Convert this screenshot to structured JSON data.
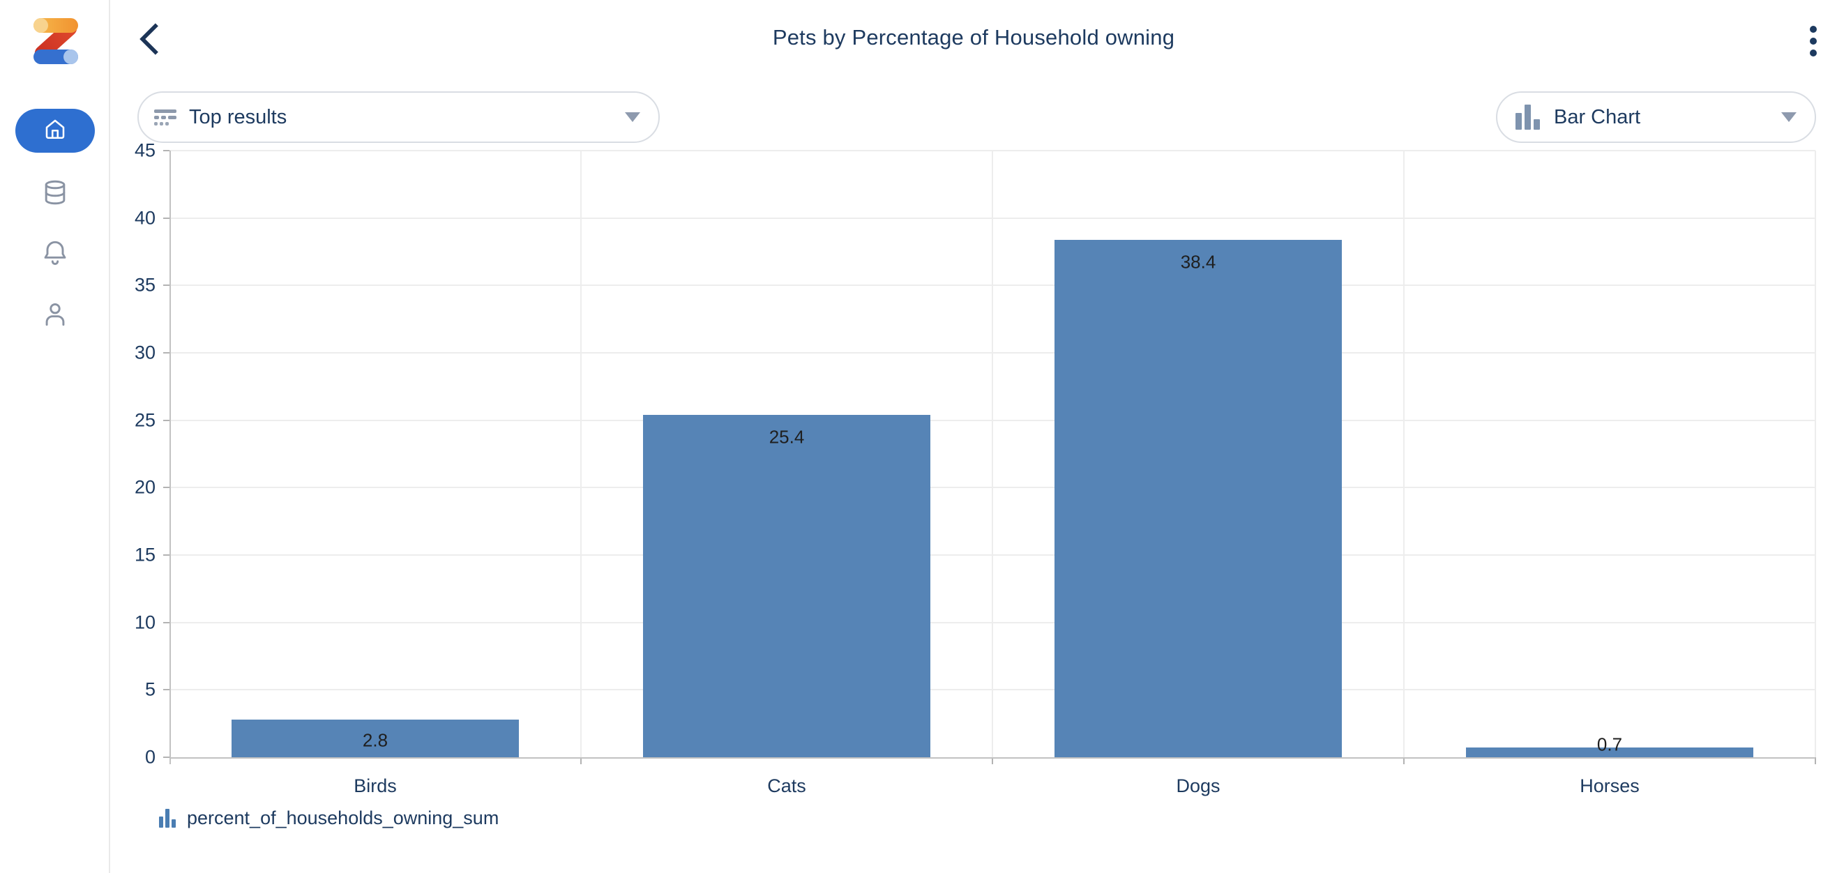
{
  "header": {
    "title": "Pets by Percentage of Household owning",
    "back_button": "back",
    "menu_button": "more options"
  },
  "toolbar": {
    "filter_label": "Top results",
    "chart_type_label": "Bar Chart"
  },
  "sidebar": {
    "items": [
      {
        "name": "home",
        "active": true
      },
      {
        "name": "data",
        "active": false
      },
      {
        "name": "notifications",
        "active": false
      },
      {
        "name": "profile",
        "active": false
      }
    ]
  },
  "chart_data": {
    "type": "bar",
    "title": "Pets by Percentage of Household owning",
    "categories": [
      "Birds",
      "Cats",
      "Dogs",
      "Horses"
    ],
    "values": [
      2.8,
      25.4,
      38.4,
      0.7
    ],
    "series_name": "percent_of_households_owning_sum",
    "xlabel": "",
    "ylabel": "",
    "ylim": [
      0,
      45
    ],
    "ytick_step": 5,
    "grid": true,
    "bar_color": "#5684b6",
    "legend_position": "bottom-left",
    "legend_entries": [
      "percent_of_households_owning_sum"
    ]
  },
  "colors": {
    "accent_blue": "#2e6fd0",
    "navy_text": "#1d3a5f",
    "bar_fill": "#5684b6",
    "grid_line": "#ededed",
    "axis_line": "#c2c2c2",
    "icon_gray": "#8a93a3"
  }
}
